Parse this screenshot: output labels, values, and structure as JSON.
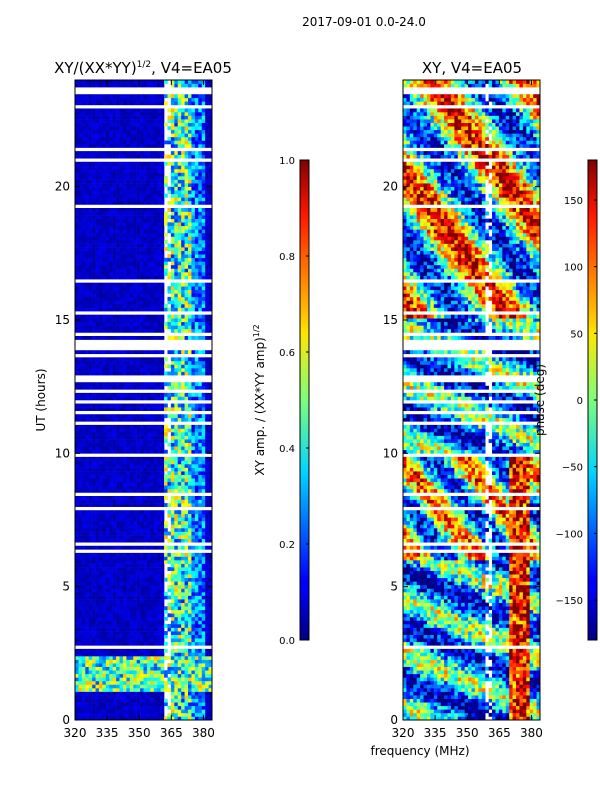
{
  "suptitle": "2017-09-01 0.0-24.0",
  "xlabel_common": "frequency (MHz)",
  "chart_data": [
    {
      "type": "heatmap",
      "title": "XY/(XX*YY)",
      "title_exp": "1/2",
      "title_suffix": ", V4=EA05",
      "xlabel": "",
      "ylabel": "UT (hours)",
      "xlim": [
        320,
        384
      ],
      "ylim": [
        0,
        24
      ],
      "xticks": [
        320,
        335,
        350,
        365,
        380
      ],
      "yticks": [
        0,
        5,
        10,
        15,
        20
      ],
      "colorbar": {
        "label": "XY amp. / (XX*YY amp)",
        "label_exp": "1/2",
        "range": [
          0.0,
          1.0
        ],
        "ticks": [
          "0.0",
          "0.2",
          "0.4",
          "0.6",
          "0.8",
          "1.0"
        ],
        "tick_values": [
          0.0,
          0.2,
          0.4,
          0.6,
          0.8,
          1.0
        ],
        "colormap": "jet"
      }
    },
    {
      "type": "heatmap",
      "title": "XY, V4=EA05",
      "xlabel": "frequency (MHz)",
      "ylabel": "",
      "xlim": [
        320,
        384
      ],
      "ylim": [
        0,
        24
      ],
      "xticks": [
        320,
        335,
        350,
        365,
        380
      ],
      "yticks": [
        0,
        5,
        10,
        15,
        20
      ],
      "colorbar": {
        "label": "phase (deg)",
        "range": [
          -180,
          180
        ],
        "ticks": [
          "−150",
          "−100",
          "−50",
          "0",
          "50",
          "100",
          "150"
        ],
        "tick_values": [
          -150,
          -100,
          -50,
          0,
          50,
          100,
          150
        ],
        "colormap": "jet"
      }
    }
  ]
}
